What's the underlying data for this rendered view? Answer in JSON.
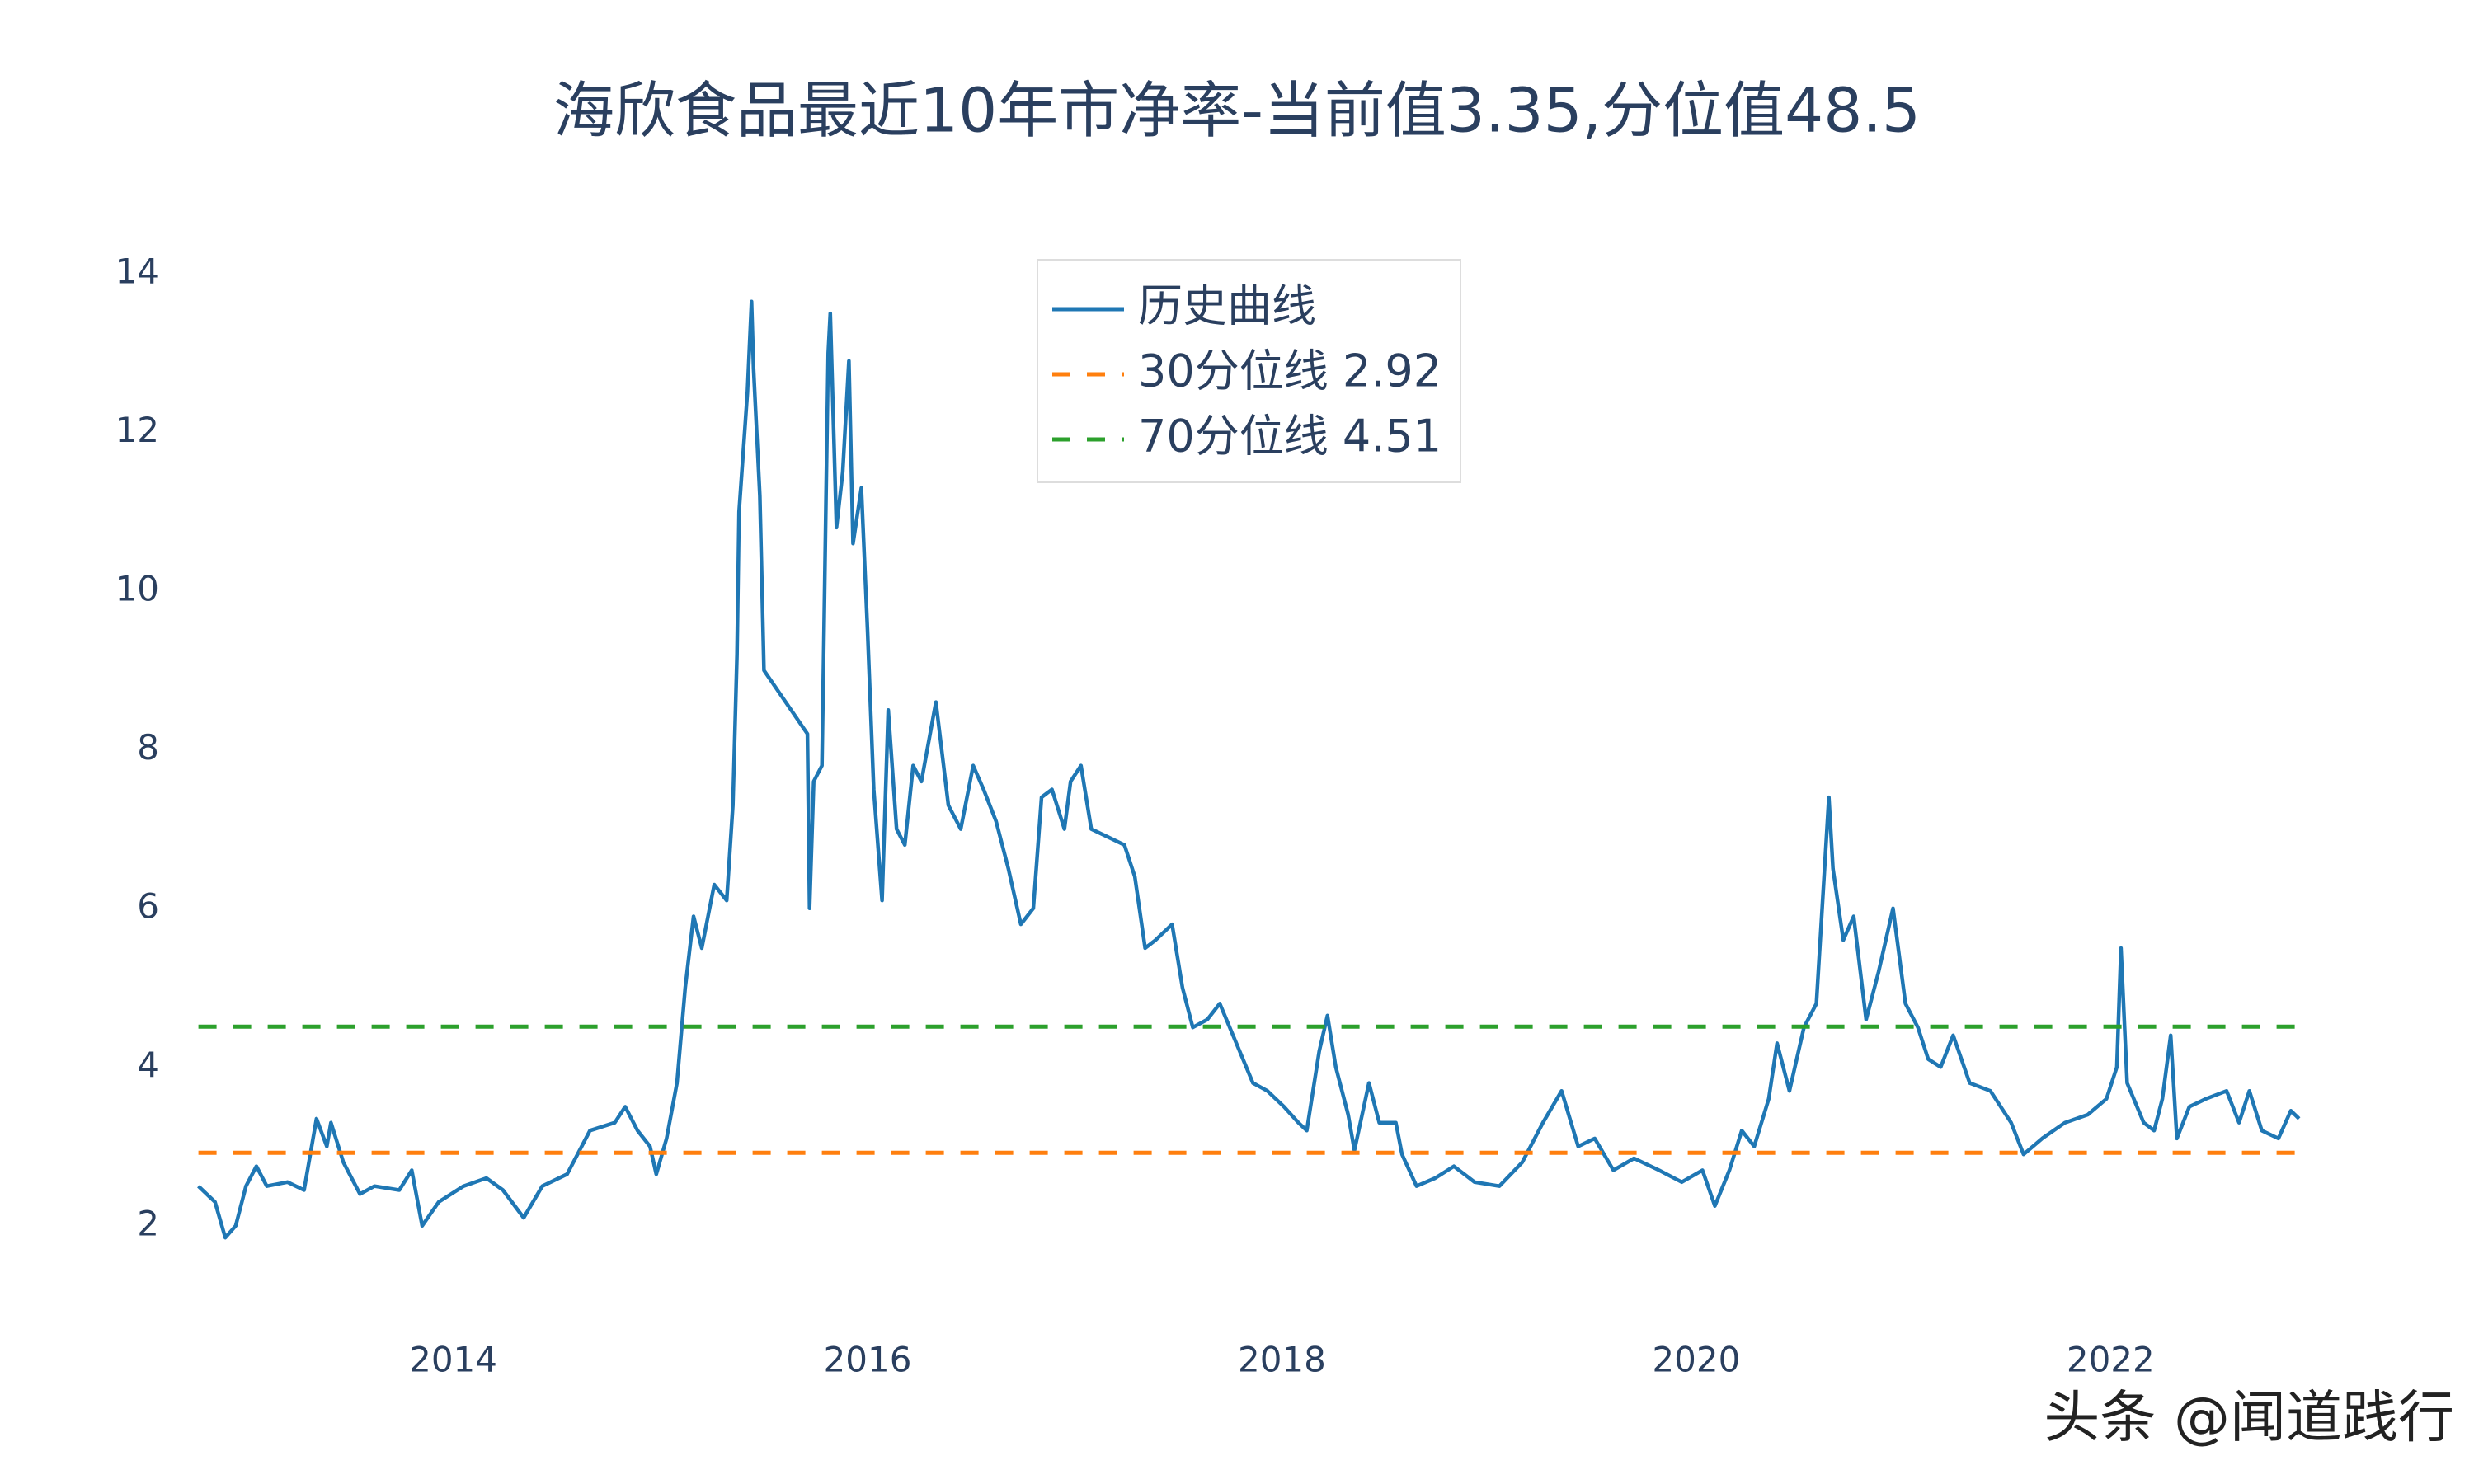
{
  "chart_data": {
    "type": "line",
    "title": "海欣食品最近10年市净率-当前值3.35,分位值48.5",
    "watermark": "头条 @闻道践行",
    "xlim": [
      2012.72,
      2022.97
    ],
    "ylim": [
      1.0,
      14.8
    ],
    "xticks": [
      2014,
      2016,
      2018,
      2020,
      2022
    ],
    "yticks": [
      2,
      4,
      6,
      8,
      10,
      12,
      14
    ],
    "grid": false,
    "legend": "top-center",
    "series": [
      {
        "name": "历史曲线",
        "color": "#1f77b4",
        "dash": "solid",
        "x": [
          2012.77,
          2012.85,
          2012.9,
          2012.95,
          2013.0,
          2013.05,
          2013.1,
          2013.2,
          2013.28,
          2013.34,
          2013.39,
          2013.41,
          2013.47,
          2013.55,
          2013.62,
          2013.74,
          2013.8,
          2013.85,
          2013.93,
          2014.05,
          2014.16,
          2014.24,
          2014.34,
          2014.43,
          2014.55,
          2014.66,
          2014.78,
          2014.83,
          2014.89,
          2014.95,
          2014.98,
          2015.03,
          2015.08,
          2015.12,
          2015.16,
          2015.2,
          2015.26,
          2015.32,
          2015.35,
          2015.37,
          2015.38,
          2015.42,
          2015.44,
          2015.45,
          2015.48,
          2015.5,
          2015.71,
          2015.72,
          2015.74,
          2015.78,
          2015.79,
          2015.81,
          2015.82,
          2015.85,
          2015.88,
          2015.91,
          2015.93,
          2015.97,
          2016.0,
          2016.03,
          2016.07,
          2016.1,
          2016.14,
          2016.18,
          2016.22,
          2016.26,
          2016.33,
          2016.39,
          2016.45,
          2016.51,
          2016.56,
          2016.62,
          2016.68,
          2016.74,
          2016.8,
          2016.84,
          2016.89,
          2016.95,
          2016.98,
          2017.03,
          2017.08,
          2017.16,
          2017.24,
          2017.29,
          2017.34,
          2017.39,
          2017.47,
          2017.52,
          2017.57,
          2017.64,
          2017.7,
          2017.78,
          2017.86,
          2017.93,
          2018.01,
          2018.08,
          2018.12,
          2018.18,
          2018.22,
          2018.26,
          2018.32,
          2018.35,
          2018.42,
          2018.47,
          2018.55,
          2018.58,
          2018.65,
          2018.74,
          2018.83,
          2018.93,
          2019.05,
          2019.16,
          2019.26,
          2019.35,
          2019.43,
          2019.51,
          2019.6,
          2019.7,
          2019.82,
          2019.93,
          2020.03,
          2020.09,
          2020.16,
          2020.22,
          2020.28,
          2020.35,
          2020.39,
          2020.45,
          2020.52,
          2020.58,
          2020.64,
          2020.66,
          2020.71,
          2020.76,
          2020.82,
          2020.88,
          2020.95,
          2021.01,
          2021.07,
          2021.12,
          2021.18,
          2021.24,
          2021.32,
          2021.42,
          2021.52,
          2021.58,
          2021.67,
          2021.78,
          2021.89,
          2021.98,
          2022.03,
          2022.05,
          2022.08,
          2022.16,
          2022.21,
          2022.25,
          2022.29,
          2022.32,
          2022.38,
          2022.46,
          2022.56,
          2022.62,
          2022.67,
          2022.73,
          2022.81,
          2022.87,
          2022.91
        ],
        "values": [
          2.5,
          2.3,
          1.85,
          2.0,
          2.5,
          2.75,
          2.5,
          2.55,
          2.45,
          3.35,
          3.0,
          3.3,
          2.8,
          2.4,
          2.5,
          2.45,
          2.7,
          2.0,
          2.3,
          2.5,
          2.6,
          2.45,
          2.1,
          2.5,
          2.65,
          3.2,
          3.3,
          3.5,
          3.2,
          3.0,
          2.65,
          3.1,
          3.8,
          5.0,
          5.9,
          5.5,
          6.3,
          6.1,
          7.3,
          9.2,
          11.0,
          12.5,
          13.65,
          12.8,
          11.2,
          9.0,
          8.2,
          6.0,
          7.6,
          7.8,
          9.5,
          13.0,
          13.5,
          10.8,
          11.5,
          12.9,
          10.6,
          11.3,
          9.5,
          7.5,
          6.1,
          8.5,
          7.0,
          6.8,
          7.8,
          7.6,
          8.6,
          7.3,
          7.0,
          7.8,
          7.5,
          7.1,
          6.5,
          5.8,
          6.0,
          7.4,
          7.5,
          7.0,
          7.6,
          7.8,
          7.0,
          6.9,
          6.8,
          6.4,
          5.5,
          5.6,
          5.8,
          5.0,
          4.5,
          4.6,
          4.8,
          4.3,
          3.8,
          3.7,
          3.5,
          3.3,
          3.2,
          4.2,
          4.65,
          4.0,
          3.4,
          2.95,
          3.8,
          3.3,
          3.3,
          2.9,
          2.5,
          2.6,
          2.75,
          2.55,
          2.5,
          2.8,
          3.3,
          3.7,
          3.0,
          3.1,
          2.7,
          2.85,
          2.7,
          2.55,
          2.7,
          2.25,
          2.7,
          3.2,
          3.0,
          3.6,
          4.3,
          3.7,
          4.5,
          4.8,
          7.4,
          6.5,
          5.6,
          5.9,
          4.6,
          5.2,
          6.0,
          4.8,
          4.5,
          4.1,
          4.0,
          4.4,
          3.8,
          3.7,
          3.3,
          2.9,
          3.1,
          3.3,
          3.4,
          3.6,
          4.0,
          5.5,
          3.8,
          3.3,
          3.2,
          3.6,
          4.4,
          3.1,
          3.5,
          3.6,
          3.7,
          3.3,
          3.7,
          3.2,
          3.1,
          3.45,
          3.35
        ]
      },
      {
        "name": "30分位线 2.92",
        "color": "#ff7f0e",
        "dash": "dash",
        "x": [
          2012.77,
          2022.91
        ],
        "values": [
          2.92,
          2.92
        ]
      },
      {
        "name": "70分位线 4.51",
        "color": "#2ca02c",
        "dash": "dash",
        "x": [
          2012.77,
          2022.91
        ],
        "values": [
          4.51,
          4.51
        ]
      }
    ]
  }
}
